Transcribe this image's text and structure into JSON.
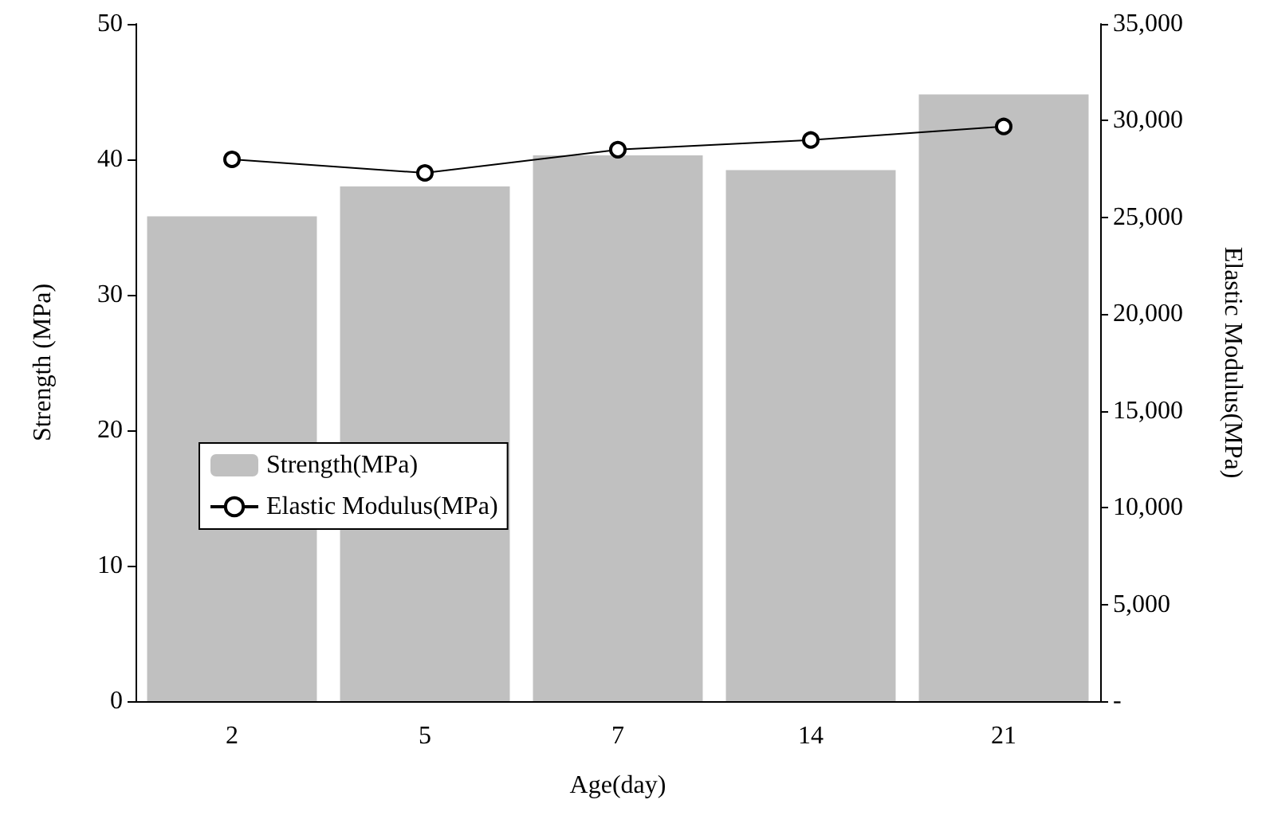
{
  "chart_data": {
    "type": "bar",
    "xlabel": "Age(day)",
    "ylabel": "Strength (MPa)",
    "y2label": "Elastic Modulus(MPa)",
    "categories": [
      "2",
      "5",
      "7",
      "14",
      "21"
    ],
    "series": [
      {
        "name": "Strength(MPa)",
        "color": "#c0c0c0",
        "values": [
          35.8,
          38.0,
          40.3,
          39.2,
          44.8
        ]
      },
      {
        "name": "Elastic Modulus(MPa)",
        "type": "line",
        "axis": "y2",
        "color": "#000000",
        "marker": "circle",
        "values": [
          28000,
          27300,
          28500,
          29000,
          29700
        ]
      }
    ],
    "ylim": [
      0,
      50
    ],
    "yticks": [
      0,
      10,
      20,
      30,
      40,
      50
    ],
    "y2lim": [
      0,
      35000
    ],
    "y2ticks": [
      {
        "value": 0,
        "label": "-"
      },
      {
        "value": 5000,
        "label": "5,000"
      },
      {
        "value": 10000,
        "label": "10,000"
      },
      {
        "value": 15000,
        "label": "15,000"
      },
      {
        "value": 20000,
        "label": "20,000"
      },
      {
        "value": 25000,
        "label": "25,000"
      },
      {
        "value": 30000,
        "label": "30,000"
      },
      {
        "value": 35000,
        "label": "35,000"
      }
    ],
    "grid": false,
    "legend": "left"
  }
}
